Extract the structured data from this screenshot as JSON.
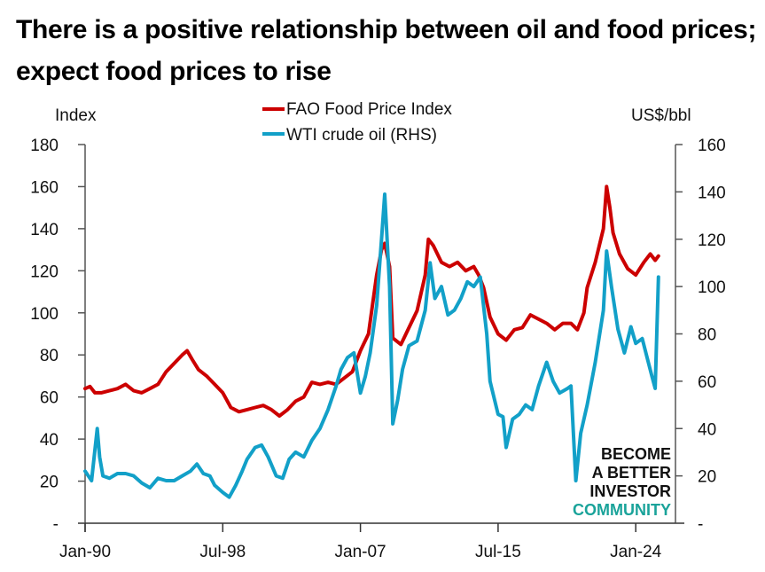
{
  "title": "There is a positive relationship between oil and food prices; expect food prices to rise",
  "watermark": {
    "lines": [
      "BECOME",
      "A BETTER",
      "INVESTOR"
    ],
    "accent_line": "COMMUNITY",
    "text_color": "#111111",
    "accent_color": "#1aa39a"
  },
  "chart_data": {
    "type": "line",
    "title": "There is a positive relationship between oil and food prices; expect food prices to rise",
    "xlabel": "",
    "ylabel": "Index",
    "y2label": "US$/bbl",
    "x_tick_labels": [
      "Jan-90",
      "Jul-98",
      "Jan-07",
      "Jul-15",
      "Jan-24"
    ],
    "x_range": [
      "Jan-90",
      "Jun-25"
    ],
    "ylim": [
      0,
      180
    ],
    "y_ticks": [
      "-",
      "20",
      "40",
      "60",
      "80",
      "100",
      "120",
      "140",
      "160",
      "180"
    ],
    "y2lim": [
      0,
      160
    ],
    "y2_ticks": [
      "-",
      "20",
      "40",
      "60",
      "80",
      "100",
      "120",
      "140",
      "160"
    ],
    "grid": false,
    "legend": {
      "placement": "top-center",
      "entries": [
        "FAO Food Price Index",
        "WTI crude oil (RHS)"
      ]
    },
    "series": [
      {
        "name": "FAO Food Price Index",
        "axis": "left",
        "color": "#cc0000",
        "x_years": [
          1990.0,
          1990.3,
          1990.6,
          1991.0,
          1991.5,
          1992.0,
          1992.5,
          1993.0,
          1993.5,
          1994.0,
          1994.5,
          1995.0,
          1995.5,
          1996.0,
          1996.3,
          1996.6,
          1997.0,
          1997.5,
          1998.0,
          1998.5,
          1999.0,
          1999.5,
          2000.0,
          2000.5,
          2001.0,
          2001.5,
          2002.0,
          2002.5,
          2003.0,
          2003.5,
          2004.0,
          2004.5,
          2005.0,
          2005.5,
          2006.0,
          2006.5,
          2007.0,
          2007.5,
          2008.0,
          2008.3,
          2008.5,
          2008.8,
          2009.0,
          2009.5,
          2010.0,
          2010.5,
          2011.0,
          2011.2,
          2011.5,
          2012.0,
          2012.5,
          2013.0,
          2013.5,
          2014.0,
          2014.3,
          2014.6,
          2015.0,
          2015.5,
          2016.0,
          2016.5,
          2017.0,
          2017.5,
          2018.0,
          2018.5,
          2019.0,
          2019.5,
          2020.0,
          2020.4,
          2020.8,
          2021.0,
          2021.5,
          2022.0,
          2022.2,
          2022.4,
          2022.6,
          2023.0,
          2023.5,
          2024.0,
          2024.5,
          2024.9,
          2025.2,
          2025.4
        ],
        "values": [
          64,
          65,
          62,
          62,
          63,
          64,
          66,
          63,
          62,
          64,
          66,
          72,
          76,
          80,
          82,
          78,
          73,
          70,
          66,
          62,
          55,
          53,
          54,
          55,
          56,
          54,
          51,
          54,
          58,
          60,
          67,
          66,
          67,
          66,
          69,
          72,
          82,
          90,
          118,
          130,
          133,
          122,
          88,
          85,
          93,
          101,
          118,
          135,
          132,
          124,
          122,
          124,
          120,
          122,
          118,
          112,
          98,
          90,
          87,
          92,
          93,
          99,
          97,
          95,
          92,
          95,
          95,
          92,
          100,
          112,
          124,
          140,
          160,
          150,
          138,
          128,
          121,
          118,
          124,
          128,
          125,
          127
        ]
      },
      {
        "name": "WTI crude oil (RHS)",
        "axis": "right",
        "color": "#12a0c8",
        "x_years": [
          1990.0,
          1990.4,
          1990.75,
          1990.9,
          1991.1,
          1991.5,
          1992.0,
          1992.5,
          1993.0,
          1993.5,
          1994.0,
          1994.5,
          1995.0,
          1995.5,
          1996.0,
          1996.5,
          1996.9,
          1997.3,
          1997.7,
          1998.0,
          1998.5,
          1998.9,
          1999.3,
          1999.7,
          2000.0,
          2000.5,
          2000.9,
          2001.3,
          2001.8,
          2002.2,
          2002.6,
          2003.0,
          2003.5,
          2004.0,
          2004.5,
          2005.0,
          2005.5,
          2005.8,
          2006.2,
          2006.6,
          2007.0,
          2007.3,
          2007.6,
          2008.0,
          2008.3,
          2008.5,
          2008.8,
          2009.0,
          2009.3,
          2009.6,
          2010.0,
          2010.5,
          2011.0,
          2011.3,
          2011.6,
          2012.0,
          2012.4,
          2012.8,
          2013.2,
          2013.6,
          2014.0,
          2014.4,
          2014.8,
          2015.0,
          2015.5,
          2015.8,
          2016.0,
          2016.4,
          2016.8,
          2017.2,
          2017.6,
          2018.0,
          2018.5,
          2018.9,
          2019.3,
          2019.8,
          2020.0,
          2020.3,
          2020.6,
          2021.0,
          2021.5,
          2022.0,
          2022.2,
          2022.5,
          2022.9,
          2023.3,
          2023.7,
          2024.0,
          2024.4,
          2024.7,
          2025.0,
          2025.2,
          2025.4
        ],
        "values": [
          22,
          18,
          40,
          28,
          20,
          19,
          21,
          21,
          20,
          17,
          15,
          19,
          18,
          18,
          20,
          22,
          25,
          21,
          20,
          16,
          13,
          11,
          16,
          22,
          27,
          32,
          33,
          28,
          20,
          19,
          27,
          30,
          28,
          35,
          40,
          48,
          58,
          65,
          70,
          72,
          55,
          62,
          72,
          92,
          120,
          139,
          100,
          42,
          52,
          65,
          75,
          77,
          90,
          110,
          95,
          100,
          88,
          90,
          95,
          102,
          100,
          104,
          80,
          60,
          46,
          45,
          32,
          44,
          46,
          50,
          48,
          58,
          68,
          60,
          55,
          57,
          58,
          18,
          38,
          50,
          68,
          90,
          115,
          100,
          82,
          72,
          83,
          76,
          78,
          70,
          62,
          57,
          104
        ]
      }
    ]
  }
}
